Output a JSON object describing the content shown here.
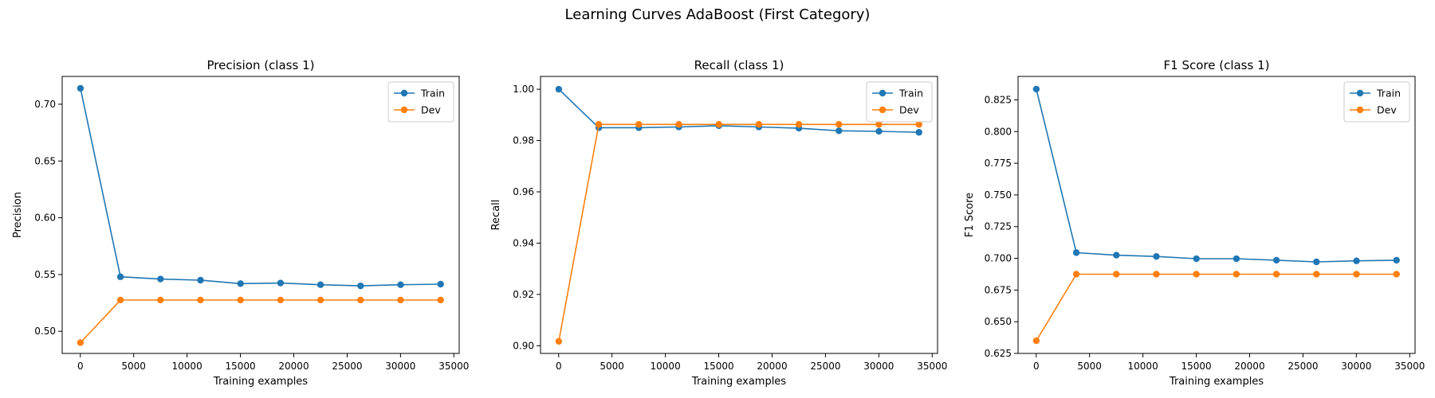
{
  "figure": {
    "title": "Learning Curves AdaBoost (First Category)"
  },
  "colors": {
    "train": "#1f77b4",
    "dev": "#ff7f0e"
  },
  "chart_data": [
    {
      "type": "line",
      "title": "Precision (class 1)",
      "xlabel": "Training examples",
      "ylabel": "Precision",
      "x": [
        10,
        3760,
        7510,
        11260,
        15010,
        18760,
        22510,
        26260,
        30010,
        33760
      ],
      "series": [
        {
          "name": "Train",
          "values": [
            0.714,
            0.548,
            0.546,
            0.545,
            0.542,
            0.5425,
            0.541,
            0.54,
            0.541,
            0.5415
          ]
        },
        {
          "name": "Dev",
          "values": [
            0.49,
            0.5275,
            0.5275,
            0.5275,
            0.5275,
            0.5275,
            0.5275,
            0.5275,
            0.5275,
            0.5275
          ]
        }
      ],
      "xlim": [
        -1700,
        35500
      ],
      "ylim": [
        0.4805,
        0.7245
      ],
      "xticks": [
        0,
        5000,
        10000,
        15000,
        20000,
        25000,
        30000,
        35000
      ],
      "yticks": [
        0.5,
        0.55,
        0.6,
        0.65,
        0.7
      ],
      "ytick_labels": [
        "0.50",
        "0.55",
        "0.60",
        "0.65",
        "0.70"
      ],
      "legend": "upper right",
      "grid": false
    },
    {
      "type": "line",
      "title": "Recall (class 1)",
      "xlabel": "Training examples",
      "ylabel": "Recall",
      "x": [
        10,
        3760,
        7510,
        11260,
        15010,
        18760,
        22510,
        26260,
        30010,
        33760
      ],
      "series": [
        {
          "name": "Train",
          "values": [
            1.0,
            0.985,
            0.985,
            0.9853,
            0.9858,
            0.9853,
            0.9848,
            0.9838,
            0.9836,
            0.9832
          ]
        },
        {
          "name": "Dev",
          "values": [
            0.9017,
            0.9863,
            0.9863,
            0.9863,
            0.9863,
            0.9863,
            0.9863,
            0.9863,
            0.9863,
            0.9863
          ]
        }
      ],
      "xlim": [
        -1700,
        35500
      ],
      "ylim": [
        0.897,
        1.005
      ],
      "xticks": [
        0,
        5000,
        10000,
        15000,
        20000,
        25000,
        30000,
        35000
      ],
      "yticks": [
        0.9,
        0.92,
        0.94,
        0.96,
        0.98,
        1.0
      ],
      "ytick_labels": [
        "0.90",
        "0.92",
        "0.94",
        "0.96",
        "0.98",
        "1.00"
      ],
      "legend": "upper right",
      "grid": false
    },
    {
      "type": "line",
      "title": "F1 Score (class 1)",
      "xlabel": "Training examples",
      "ylabel": "F1 Score",
      "x": [
        10,
        3760,
        7510,
        11260,
        15010,
        18760,
        22510,
        26260,
        30010,
        33760
      ],
      "series": [
        {
          "name": "Train",
          "values": [
            0.8335,
            0.7045,
            0.7025,
            0.7015,
            0.6997,
            0.6997,
            0.6985,
            0.6972,
            0.698,
            0.6985
          ]
        },
        {
          "name": "Dev",
          "values": [
            0.635,
            0.6875,
            0.6875,
            0.6875,
            0.6875,
            0.6875,
            0.6875,
            0.6875,
            0.6875,
            0.6875
          ]
        }
      ],
      "xlim": [
        -1700,
        35500
      ],
      "ylim": [
        0.625,
        0.8435
      ],
      "xticks": [
        0,
        5000,
        10000,
        15000,
        20000,
        25000,
        30000,
        35000
      ],
      "yticks": [
        0.625,
        0.65,
        0.675,
        0.7,
        0.725,
        0.75,
        0.775,
        0.8,
        0.825
      ],
      "ytick_labels": [
        "0.625",
        "0.650",
        "0.675",
        "0.700",
        "0.725",
        "0.750",
        "0.775",
        "0.800",
        "0.825"
      ],
      "legend": "upper right",
      "grid": false
    }
  ]
}
